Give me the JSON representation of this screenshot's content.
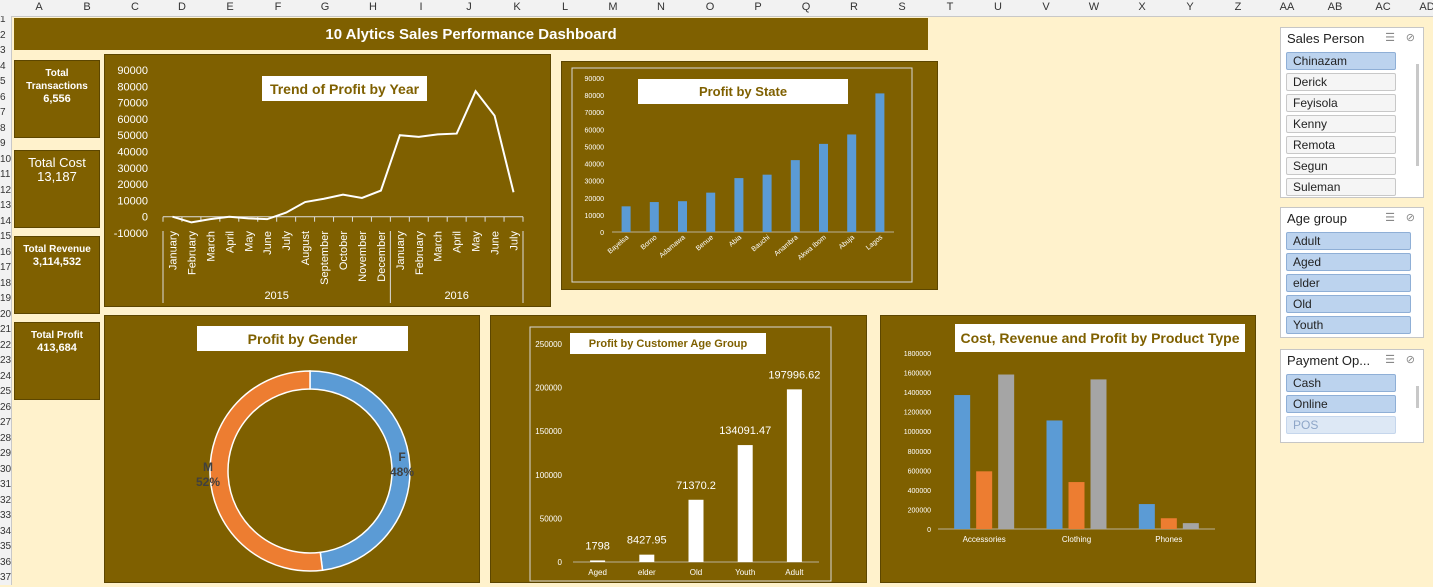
{
  "columns": [
    "A",
    "B",
    "C",
    "D",
    "E",
    "F",
    "G",
    "H",
    "I",
    "J",
    "K",
    "L",
    "M",
    "N",
    "O",
    "P",
    "Q",
    "R",
    "S",
    "T",
    "U",
    "V",
    "W",
    "X",
    "Y",
    "Z",
    "AA",
    "AB",
    "AC",
    "AD"
  ],
  "rows": [
    "1",
    "2",
    "3",
    "4",
    "5",
    "6",
    "7",
    "8",
    "9",
    "10",
    "11",
    "12",
    "13",
    "14",
    "15",
    "16",
    "17",
    "18",
    "19",
    "20",
    "21",
    "22",
    "23",
    "24",
    "25",
    "26",
    "27",
    "28",
    "29",
    "30",
    "31",
    "32",
    "33",
    "34",
    "35",
    "36",
    "37"
  ],
  "dashboard": {
    "title": "10 Alytics Sales Performance Dashboard"
  },
  "kpis": [
    {
      "label": "Total Transactions",
      "value": "6,556"
    },
    {
      "label": "Total Cost",
      "value": "13,187"
    },
    {
      "label": "Total Revenue",
      "value": "3,114,532"
    },
    {
      "label": "Total Profit",
      "value": "413,684"
    }
  ],
  "slicers": [
    {
      "title": "Sales Person",
      "items": [
        {
          "label": "Chinazam",
          "state": "selected"
        },
        {
          "label": "Derick",
          "state": "off"
        },
        {
          "label": "Feyisola",
          "state": "off"
        },
        {
          "label": "Kenny",
          "state": "off"
        },
        {
          "label": "Remota",
          "state": "off"
        },
        {
          "label": "Segun",
          "state": "off"
        },
        {
          "label": "Suleman",
          "state": "off"
        }
      ]
    },
    {
      "title": "Age group",
      "items": [
        {
          "label": "Adult",
          "state": "on"
        },
        {
          "label": "Aged",
          "state": "on"
        },
        {
          "label": "elder",
          "state": "on"
        },
        {
          "label": "Old",
          "state": "on"
        },
        {
          "label": "Youth",
          "state": "on"
        }
      ]
    },
    {
      "title": "Payment Op...",
      "items": [
        {
          "label": "Cash",
          "state": "on"
        },
        {
          "label": "Online",
          "state": "on"
        },
        {
          "label": "POS",
          "state": "dim"
        }
      ]
    }
  ],
  "colors": {
    "panel": "#7f6000",
    "blue": "#5b9bd5",
    "orange": "#ed7d31",
    "gray": "#a5a5a5",
    "white": "#ffffff"
  },
  "chart_data": [
    {
      "type": "line",
      "title": "Trend of Profit by Year",
      "categories": [
        "January",
        "February",
        "March",
        "April",
        "May",
        "June",
        "July",
        "August",
        "September",
        "October",
        "November",
        "December",
        "January",
        "February",
        "March",
        "April",
        "May",
        "June",
        "July"
      ],
      "groups": [
        {
          "label": "2015",
          "count": 12
        },
        {
          "label": "2016",
          "count": 7
        }
      ],
      "values": [
        0,
        -3500,
        -1500,
        0,
        -1000,
        -1500,
        2500,
        9000,
        11000,
        13500,
        11500,
        16000,
        50000,
        49000,
        50500,
        51000,
        77000,
        62000,
        15000
      ],
      "yticks": [
        90000,
        80000,
        70000,
        60000,
        50000,
        40000,
        30000,
        20000,
        10000,
        0,
        -10000
      ],
      "ylim": [
        -10000,
        90000
      ],
      "color": "#ffffff"
    },
    {
      "type": "bar",
      "title": "Profit by State",
      "categories": [
        "Bayelsa",
        "Borno",
        "Adamawa",
        "Benue",
        "Abia",
        "Bauchi",
        "Anambra",
        "Akwa Ibom",
        "Abuja",
        "Lagos"
      ],
      "values": [
        15000,
        17500,
        18000,
        23000,
        31500,
        33500,
        42000,
        51500,
        57000,
        81000
      ],
      "yticks": [
        90000,
        80000,
        70000,
        60000,
        50000,
        40000,
        30000,
        20000,
        10000,
        0
      ],
      "ylim": [
        0,
        90000
      ],
      "color": "#5b9bd5"
    },
    {
      "type": "pie",
      "title": "Profit by Gender",
      "slices": [
        {
          "name": "F",
          "pct": "48%",
          "value": 48,
          "color": "#5b9bd5"
        },
        {
          "name": "M",
          "pct": "52%",
          "value": 52,
          "color": "#ed7d31"
        }
      ]
    },
    {
      "type": "bar",
      "title": "Profit by Customer Age Group",
      "categories": [
        "Aged",
        "elder",
        "Old",
        "Youth",
        "Adult"
      ],
      "values": [
        1798,
        8427.95,
        71370.2,
        134091.47,
        197996.62
      ],
      "labels": [
        "1798",
        "8427.95",
        "71370.2",
        "134091.47",
        "197996.62"
      ],
      "yticks": [
        250000,
        200000,
        150000,
        100000,
        50000,
        0
      ],
      "ylim": [
        0,
        250000
      ],
      "color": "#ffffff"
    },
    {
      "type": "bar",
      "title": "Cost, Revenue and Profit by Product Type",
      "categories": [
        "Accessories",
        "Clothing",
        "Phones"
      ],
      "series": [
        {
          "values": [
            1370000,
            1110000,
            255000
          ],
          "color": "#5b9bd5"
        },
        {
          "values": [
            590000,
            480000,
            110000
          ],
          "color": "#ed7d31"
        },
        {
          "values": [
            1580000,
            1530000,
            60000
          ],
          "color": "#a5a5a5"
        }
      ],
      "yticks": [
        1800000,
        1600000,
        1400000,
        1200000,
        1000000,
        800000,
        600000,
        400000,
        200000,
        0
      ],
      "ylim": [
        0,
        1800000
      ]
    }
  ]
}
